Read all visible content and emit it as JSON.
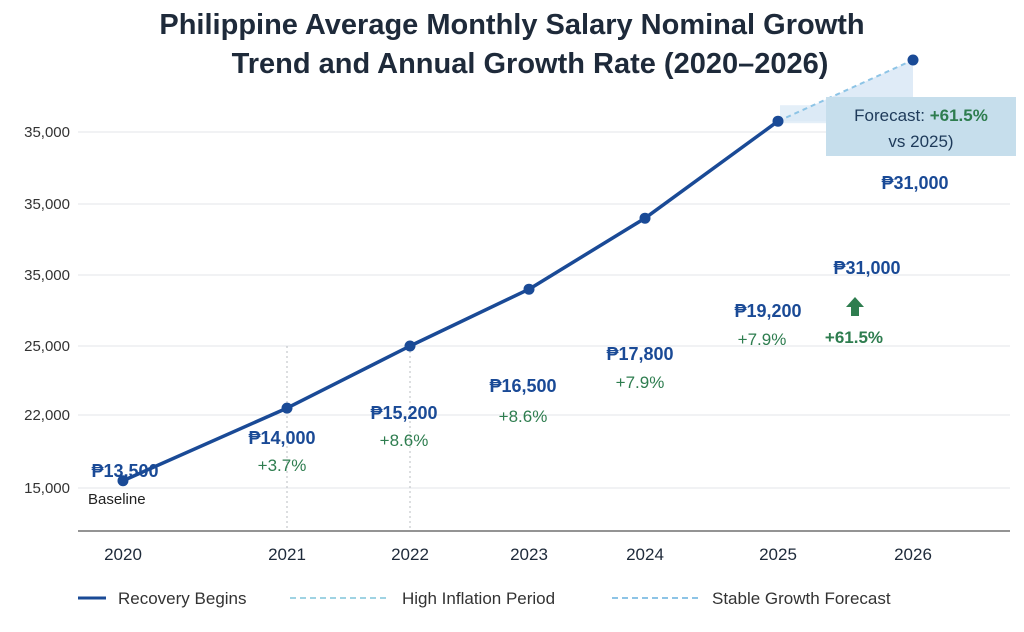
{
  "title": {
    "line1": "Philippine Average Monthly Salary Nominal Growth",
    "line2": "Trend and Annual Growth Rate (2020–2026)"
  },
  "chart_data": {
    "type": "line",
    "title": "Philippine Average Monthly Salary Nominal Growth Trend and Annual Growth Rate (2020–2026)",
    "y_tick_labels": [
      "35,000",
      "35,000",
      "35,000",
      "25,000",
      "22,000",
      "15,000"
    ],
    "categories": [
      "2020",
      "2021",
      "2022",
      "2023",
      "2024",
      "2025",
      "2026"
    ],
    "series": [
      {
        "name": "Recovery Begins",
        "style": "solid",
        "x": [
          "2020",
          "2021",
          "2022",
          "2023",
          "2024",
          "2025"
        ],
        "y_position": [
          0.1,
          1.1,
          2.0,
          2.8,
          3.8,
          5.15
        ]
      },
      {
        "name": "Stable Growth Forecast",
        "style": "dashed",
        "x": [
          "2025",
          "2026"
        ],
        "y_position": [
          5.15,
          6.0
        ]
      }
    ],
    "point_labels": [
      {
        "x": "2020",
        "value": "₱13,500",
        "sub": "Baseline",
        "sub_kind": "text"
      },
      {
        "x": "2021",
        "value": "₱14,000",
        "sub": "+3.7%",
        "sub_kind": "pct"
      },
      {
        "x": "2022",
        "value": "₱15,200",
        "sub": "+8.6%",
        "sub_kind": "pct"
      },
      {
        "x": "2023",
        "value": "₱16,500",
        "sub": "+8.6%",
        "sub_kind": "pct"
      },
      {
        "x": "2024",
        "value": "₱17,800",
        "sub": "+7.9%",
        "sub_kind": "pct"
      },
      {
        "x": "2025",
        "value": "₱19,200",
        "sub": "+7.9%",
        "sub_kind": "pct"
      },
      {
        "x": "2026",
        "value": "₱31,000",
        "sub": "",
        "sub_kind": "pct"
      }
    ],
    "annotations": {
      "forecast_box_prefix": "Forecast: ",
      "forecast_box_value": "+61.5%",
      "forecast_box_line2": "vs 2025)",
      "band_value": "₱31,000",
      "jump_value": "+61.5%"
    },
    "legend": [
      {
        "label": "Recovery Begins",
        "style": "solid",
        "color": "#1a4a96"
      },
      {
        "label": "High Inflation Period",
        "style": "dashed",
        "color": "#9fd3e3"
      },
      {
        "label": "Stable Growth Forecast",
        "style": "dashed",
        "color": "#8dc4e6"
      }
    ],
    "legend_position": "bottom",
    "grid": true,
    "colors": {
      "line": "#1a4a96",
      "forecast": "#8dc4e6",
      "growth": "#2e7d4f",
      "band": "#dbe9f6"
    }
  }
}
